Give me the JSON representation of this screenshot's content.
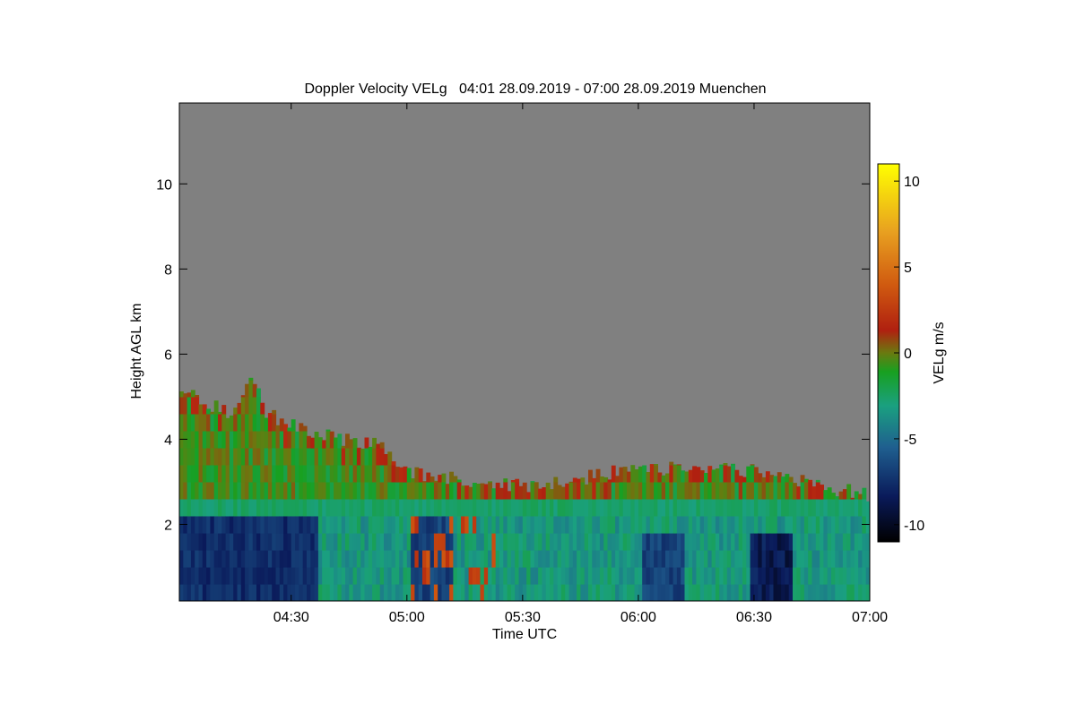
{
  "chart_data": {
    "type": "heatmap",
    "title": "Doppler Velocity VELg   04:01 28.09.2019 - 07:00 28.09.2019 Muenchen",
    "xlabel": "Time UTC",
    "ylabel": "Height AGL km",
    "x_range": [
      "04:01",
      "07:00"
    ],
    "x_ticks": [
      "04:30",
      "05:00",
      "05:30",
      "06:00",
      "06:30",
      "07:00"
    ],
    "x_tick_minutes": [
      29,
      59,
      89,
      119,
      149,
      179
    ],
    "ylim": [
      0.2,
      11.9
    ],
    "y_ticks": [
      2,
      4,
      6,
      8,
      10
    ],
    "y_tick_labels": [
      "2",
      "4",
      "6",
      "8",
      "10"
    ],
    "colorbar": {
      "label": "VELg m/s",
      "range": [
        -11,
        11
      ],
      "ticks": [
        10,
        5,
        0,
        -5,
        -10
      ],
      "tick_labels": [
        "10",
        "5",
        "0",
        "-5",
        "-10"
      ]
    },
    "background_color": "#808080",
    "cloud_top_km": [
      [
        0,
        5.3
      ],
      [
        6,
        4.9
      ],
      [
        12,
        4.6
      ],
      [
        16,
        5.1
      ],
      [
        18,
        5.5
      ],
      [
        22,
        4.6
      ],
      [
        30,
        4.3
      ],
      [
        40,
        4.0
      ],
      [
        50,
        3.9
      ],
      [
        55,
        3.6
      ],
      [
        58,
        3.3
      ],
      [
        62,
        3.2
      ],
      [
        75,
        3.0
      ],
      [
        88,
        2.9
      ],
      [
        100,
        3.0
      ],
      [
        110,
        3.2
      ],
      [
        125,
        3.3
      ],
      [
        140,
        3.3
      ],
      [
        155,
        3.2
      ],
      [
        165,
        2.9
      ],
      [
        179,
        2.7
      ]
    ],
    "boundary_layer_km": 2.0,
    "strong_downdrafts": [
      {
        "start_min": 0,
        "end_min": 35,
        "top_km": 1.9,
        "vel": -8
      },
      {
        "start_min": 60,
        "end_min": 70,
        "top_km": 1.9,
        "vel": -7
      },
      {
        "start_min": 120,
        "end_min": 130,
        "top_km": 1.8,
        "vel": -7
      },
      {
        "start_min": 148,
        "end_min": 158,
        "top_km": 1.8,
        "vel": -9
      }
    ]
  }
}
